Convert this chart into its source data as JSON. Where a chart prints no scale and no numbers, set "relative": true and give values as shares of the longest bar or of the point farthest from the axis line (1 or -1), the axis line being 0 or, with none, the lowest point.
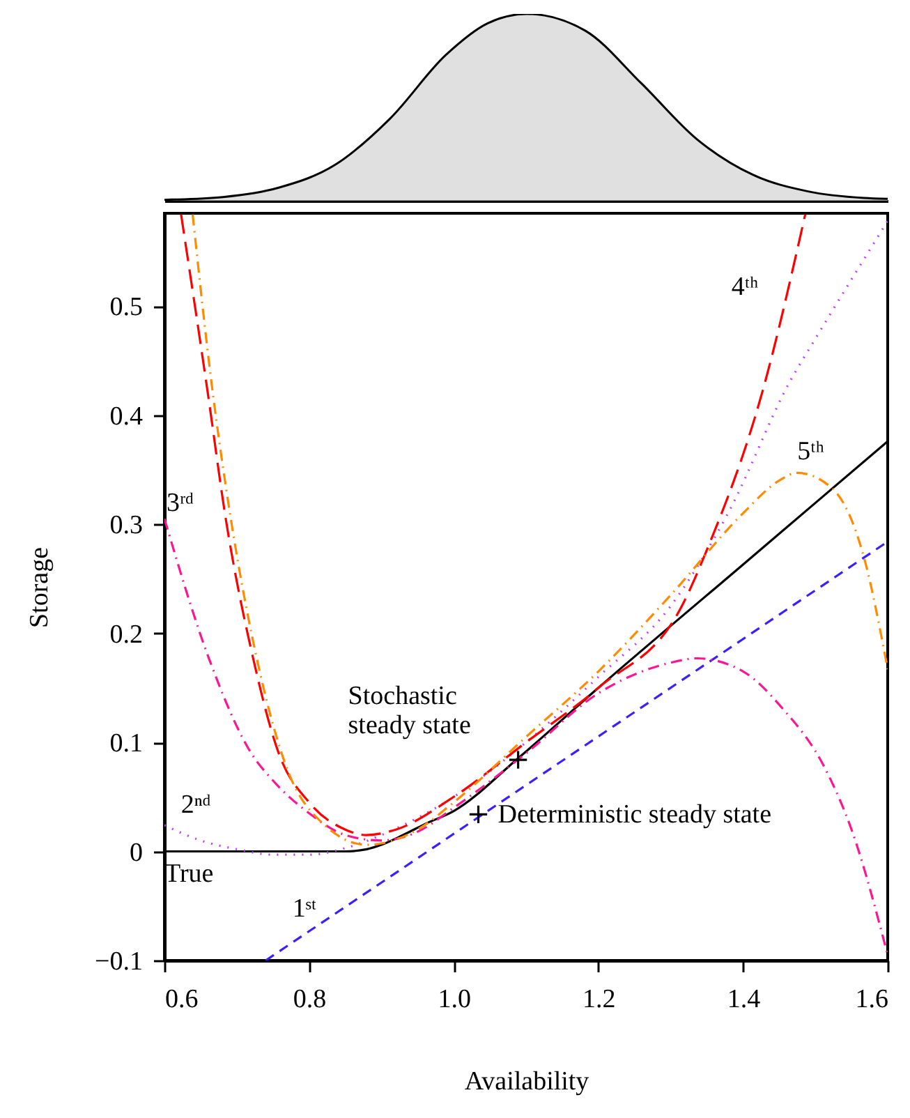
{
  "chart_data": [
    {
      "type": "area",
      "relative": true,
      "color": "#d3d3d3",
      "xlim": [
        0.6,
        1.6
      ],
      "x": [
        0.6,
        0.681,
        0.758,
        0.835,
        0.912,
        0.989,
        1.047,
        1.101,
        1.182,
        1.259,
        1.336,
        1.413,
        1.49,
        1.567,
        1.6
      ],
      "values": [
        0.005,
        0.02,
        0.07,
        0.19,
        0.44,
        0.78,
        0.95,
        1,
        0.91,
        0.63,
        0.33,
        0.14,
        0.05,
        0.015,
        0.01
      ]
    },
    {
      "type": "line",
      "xlabel": "Availability",
      "ylabel": "Storage",
      "xlim": [
        0.6,
        1.6
      ],
      "ylim": [
        -0.1,
        0.585
      ],
      "xticks": [
        0.6,
        0.8,
        {
          "value": 1.0,
          "label": "1.0"
        },
        1.2,
        1.4,
        1.6
      ],
      "yticks": [
        -0.1,
        0,
        0.1,
        0.2,
        0.3,
        0.4,
        0.5
      ],
      "annotations": [
        {
          "text": "Stochastic steady state",
          "x": 1.089,
          "y": 0.084
        },
        {
          "text": "Deterministic steady state",
          "x": 1.034,
          "y": 0.034
        }
      ],
      "series": [
        {
          "name": "True",
          "color": "#000000",
          "line_style": "solid",
          "x": [
            0.6,
            0.85,
            0.88,
            0.9,
            0.93,
            0.96,
            1.0,
            1.09,
            1.2,
            1.4,
            1.6
          ],
          "values": [
            0,
            0,
            0.002,
            0.006,
            0.015,
            0.025,
            0.037,
            0.086,
            0.15,
            0.263,
            0.376
          ]
        },
        {
          "name": "1ˢᵗ",
          "color": "#3a1fff",
          "line_style": "dashed",
          "x": [
            0.74,
            1.6
          ],
          "values": [
            -0.1,
            0.284
          ]
        },
        {
          "name": "2ⁿᵈ",
          "color": "#bf3eff",
          "line_style": "dotted",
          "x": [
            0.6,
            0.65,
            0.7,
            0.75,
            0.8,
            0.85,
            0.9,
            1.0,
            1.1,
            1.2,
            1.3,
            1.38,
            1.465,
            1.5,
            1.6
          ],
          "values": [
            0.024,
            0.01,
            0.002,
            -0.003,
            -0.003,
            0.003,
            0.015,
            0.05,
            0.1,
            0.16,
            0.225,
            0.311,
            0.431,
            0.47,
            0.578
          ]
        },
        {
          "name": "3ʳᵈ",
          "color": "#ff1493",
          "line_style": "dashdot",
          "x": [
            0.6,
            0.662,
            0.72,
            0.75,
            0.8,
            0.85,
            0.9,
            0.95,
            1.0,
            1.1,
            1.2,
            1.3,
            1.336,
            1.4,
            1.452,
            1.515,
            1.55,
            1.6
          ],
          "values": [
            0.305,
            0.176,
            0.09,
            0.065,
            0.035,
            0.015,
            0.01,
            0.018,
            0.04,
            0.09,
            0.145,
            0.173,
            0.177,
            0.165,
            0.133,
            0.074,
            0.02,
            -0.095
          ]
        },
        {
          "name": "4ᵗʰ",
          "color": "#ff0000",
          "line_style": "longdash",
          "x": [
            0.623,
            0.66,
            0.685,
            0.723,
            0.758,
            0.8,
            0.85,
            0.879,
            0.92,
            1.0,
            1.1,
            1.2,
            1.317,
            1.351,
            1.427,
            1.486
          ],
          "values": [
            0.584,
            0.42,
            0.304,
            0.176,
            0.09,
            0.045,
            0.02,
            0.015,
            0.02,
            0.05,
            0.1,
            0.15,
            0.227,
            0.278,
            0.422,
            0.584
          ]
        },
        {
          "name": "5ᵗʰ",
          "color": "#ff8c00",
          "line_style": "dashdot",
          "x": [
            0.639,
            0.665,
            0.692,
            0.73,
            0.77,
            0.82,
            0.88,
            0.95,
            1.0,
            1.1,
            1.2,
            1.3,
            1.4,
            1.45,
            1.475,
            1.523,
            1.567,
            1.6
          ],
          "values": [
            0.584,
            0.43,
            0.304,
            0.17,
            0.075,
            0.025,
            0.006,
            0.02,
            0.045,
            0.105,
            0.165,
            0.235,
            0.31,
            0.34,
            0.347,
            0.333,
            0.27,
            0.167
          ]
        }
      ]
    }
  ]
}
